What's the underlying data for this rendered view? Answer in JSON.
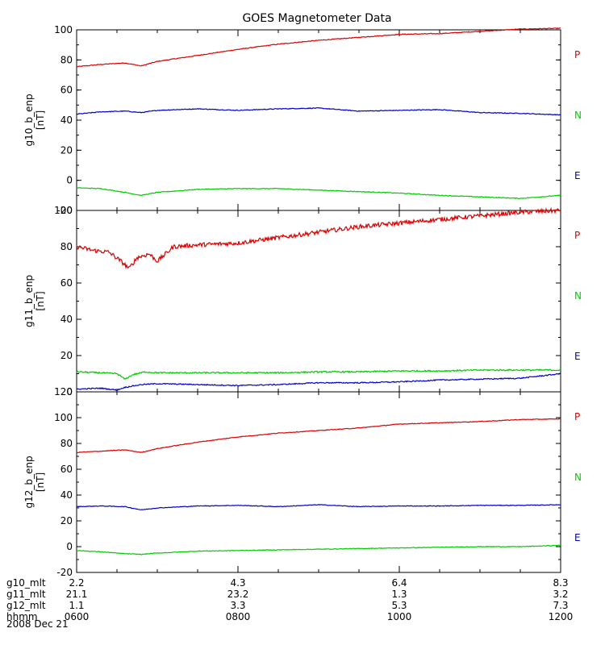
{
  "chart_data": {
    "type": "line",
    "title": "GOES Magnetometer Data",
    "x_ticks": [
      "0600",
      "0800",
      "1000",
      "1200"
    ],
    "x_range_hours": [
      6,
      12
    ],
    "colors": {
      "P": "#dd0000",
      "N": "#00cc00",
      "E": "#0000cc"
    },
    "legend_labels": [
      "P",
      "N",
      "E"
    ],
    "panels": [
      {
        "ylabel": "g10_b_enp",
        "units": "[nT]",
        "ylim": [
          -20,
          100
        ],
        "y_ticks": [
          -20,
          0,
          20,
          40,
          60,
          80,
          100
        ],
        "series": [
          {
            "name": "P",
            "line_color": "#dd0000",
            "x": [
              6.0,
              6.3,
              6.6,
              6.8,
              7.0,
              7.5,
              8.0,
              8.5,
              9.0,
              9.5,
              10.0,
              10.5,
              11.0,
              11.5,
              12.0
            ],
            "y": [
              75.5,
              77,
              78,
              76,
              79,
              83,
              87,
              90.5,
              93,
              95,
              97,
              97.5,
              99,
              100.5,
              101
            ]
          },
          {
            "name": "E",
            "line_color": "#0000cc",
            "x": [
              6.0,
              6.3,
              6.6,
              6.8,
              7.0,
              7.5,
              8.0,
              8.5,
              9.0,
              9.5,
              10.0,
              10.5,
              11.0,
              11.5,
              12.0
            ],
            "y": [
              44,
              45.5,
              46,
              45,
              46.5,
              47.5,
              46.5,
              47.5,
              48,
              46,
              46.5,
              47,
              45,
              44.5,
              43.5
            ]
          },
          {
            "name": "N",
            "line_color": "#00cc00",
            "x": [
              6.0,
              6.3,
              6.6,
              6.8,
              7.0,
              7.5,
              8.0,
              8.5,
              9.0,
              9.5,
              10.0,
              10.5,
              11.0,
              11.5,
              12.0
            ],
            "y": [
              -5,
              -5.5,
              -8,
              -10,
              -8,
              -6,
              -5.5,
              -5.5,
              -6.5,
              -7.5,
              -8.5,
              -10,
              -11,
              -12,
              -10
            ]
          }
        ]
      },
      {
        "ylabel": "g11_b_enp",
        "units": "[nT]",
        "ylim": [
          0,
          100
        ],
        "y_ticks": [
          0,
          20,
          40,
          60,
          80,
          100
        ],
        "series": [
          {
            "name": "P",
            "line_color": "#dd0000",
            "x": [
              6.0,
              6.2,
              6.4,
              6.55,
              6.65,
              6.75,
              6.9,
              7.0,
              7.2,
              7.5,
              8.0,
              8.5,
              9.0,
              9.5,
              10.0,
              10.5,
              11.0,
              11.5,
              12.0
            ],
            "y": [
              80,
              78,
              77,
              72,
              68,
              74,
              76,
              72,
              80,
              81,
              82,
              85,
              88,
              91,
              93,
              95,
              97,
              99,
              100
            ],
            "noise": 1.2
          },
          {
            "name": "N",
            "line_color": "#00cc00",
            "x": [
              6.0,
              6.3,
              6.5,
              6.6,
              6.7,
              6.85,
              7.0,
              7.5,
              8.0,
              8.5,
              9.0,
              9.5,
              10.0,
              10.5,
              11.0,
              11.5,
              12.0
            ],
            "y": [
              11,
              10.5,
              10,
              7,
              9.5,
              11,
              10.5,
              10.5,
              10.5,
              10.5,
              11,
              11,
              11.5,
              11.5,
              12,
              12,
              12
            ],
            "noise": 0.4
          },
          {
            "name": "E",
            "line_color": "#0000cc",
            "x": [
              6.0,
              6.3,
              6.5,
              6.6,
              6.8,
              7.0,
              7.5,
              8.0,
              8.5,
              9.0,
              9.5,
              10.0,
              10.5,
              11.0,
              11.5,
              12.0
            ],
            "y": [
              1.5,
              2,
              1,
              2.5,
              4,
              4.5,
              4,
              3.5,
              4,
              5,
              5,
              5.5,
              6.5,
              7,
              7.5,
              10
            ],
            "noise": 0.3
          }
        ]
      },
      {
        "ylabel": "g12_b_enp",
        "units": "[nT]",
        "ylim": [
          -20,
          120
        ],
        "y_ticks": [
          -20,
          0,
          20,
          40,
          60,
          80,
          100,
          120
        ],
        "series": [
          {
            "name": "P",
            "line_color": "#dd0000",
            "x": [
              6.0,
              6.3,
              6.6,
              6.8,
              7.0,
              7.5,
              8.0,
              8.5,
              9.0,
              9.5,
              10.0,
              10.5,
              11.0,
              11.5,
              12.0
            ],
            "y": [
              73,
              74,
              75,
              73,
              76,
              81,
              85,
              88,
              90,
              92,
              95,
              96,
              97,
              98.5,
              99
            ]
          },
          {
            "name": "E",
            "line_color": "#0000cc",
            "x": [
              6.0,
              6.3,
              6.6,
              6.8,
              7.0,
              7.5,
              8.0,
              8.5,
              9.0,
              9.5,
              10.0,
              10.5,
              11.0,
              11.5,
              12.0
            ],
            "y": [
              31,
              31.5,
              31,
              28.5,
              30,
              31.5,
              32,
              31,
              32.5,
              31,
              31.5,
              31.5,
              32,
              32,
              32.5
            ]
          },
          {
            "name": "N",
            "line_color": "#00cc00",
            "x": [
              6.0,
              6.3,
              6.6,
              6.8,
              7.0,
              7.5,
              8.0,
              8.5,
              9.0,
              9.5,
              10.0,
              10.5,
              11.0,
              11.5,
              12.0
            ],
            "y": [
              -3,
              -4,
              -5.5,
              -6,
              -5,
              -3.5,
              -3,
              -2.5,
              -2,
              -1.5,
              -1,
              -0.5,
              0,
              0,
              1
            ]
          }
        ]
      }
    ],
    "ephemeris": {
      "rows": [
        {
          "label": "g10_mlt",
          "values": [
            "2.2",
            "4.3",
            "6.4",
            "8.3"
          ]
        },
        {
          "label": "g11_mlt",
          "values": [
            "21.1",
            "23.2",
            "1.3",
            "3.2"
          ]
        },
        {
          "label": "g12_mlt",
          "values": [
            "1.1",
            "3.3",
            "5.3",
            "7.3"
          ]
        },
        {
          "label": "hhmm",
          "values": [
            "0600",
            "0800",
            "1000",
            "1200"
          ]
        }
      ],
      "date": "2008 Dec 21"
    }
  }
}
